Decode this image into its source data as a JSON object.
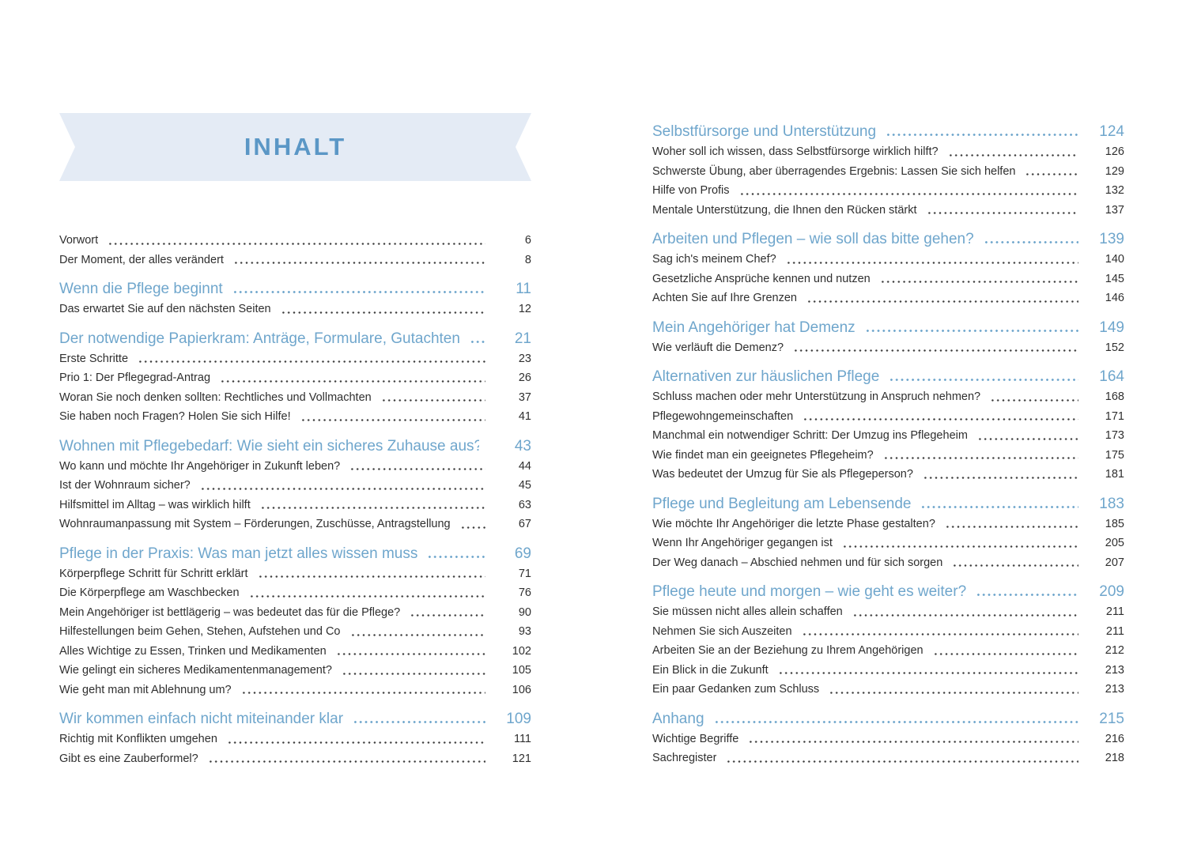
{
  "page": {
    "title": "INHALT"
  },
  "colors": {
    "banner_bg": "#E4EBF5",
    "title_blue": "#5B97C6",
    "heading_blue": "#6FA6CC",
    "body_text": "#2F2F2F"
  },
  "columns": [
    {
      "side": "left",
      "sections": [
        {
          "heading": null,
          "items": [
            {
              "label": "Vorwort",
              "page": "6"
            },
            {
              "label": "Der Moment, der alles verändert",
              "page": "8"
            }
          ]
        },
        {
          "heading": {
            "label": "Wenn die Pflege beginnt",
            "page": "11"
          },
          "items": [
            {
              "label": "Das erwartet Sie auf den nächsten Seiten",
              "page": "12"
            }
          ]
        },
        {
          "heading": {
            "label": "Der notwendige Papierkram: Anträge, Formulare, Gutachten",
            "page": "21"
          },
          "items": [
            {
              "label": "Erste Schritte",
              "page": "23"
            },
            {
              "label": "Prio 1: Der Pflegegrad-Antrag",
              "page": "26"
            },
            {
              "label": "Woran Sie noch denken sollten: Rechtliches und Vollmachten",
              "page": "37"
            },
            {
              "label": "Sie haben noch Fragen? Holen Sie sich Hilfe!",
              "page": "41"
            }
          ]
        },
        {
          "heading": {
            "label": "Wohnen mit Pflegebedarf: Wie sieht ein sicheres Zuhause aus?",
            "page": "43"
          },
          "items": [
            {
              "label": "Wo kann und möchte Ihr Angehöriger in Zukunft leben?",
              "page": "44"
            },
            {
              "label": "Ist der Wohnraum sicher?",
              "page": "45"
            },
            {
              "label": "Hilfsmittel im Alltag – was wirklich hilft",
              "page": "63"
            },
            {
              "label": "Wohnraumanpassung mit System – Förderungen, Zuschüsse, Antragstellung",
              "page": "67"
            }
          ]
        },
        {
          "heading": {
            "label": "Pflege in der Praxis: Was man jetzt alles wissen muss",
            "page": "69"
          },
          "items": [
            {
              "label": "Körperpflege Schritt für Schritt erklärt",
              "page": "71"
            },
            {
              "label": "Die Körperpflege am Waschbecken",
              "page": "76"
            },
            {
              "label": "Mein Angehöriger ist bettlägerig – was bedeutet das für die Pflege?",
              "page": "90"
            },
            {
              "label": "Hilfestellungen beim Gehen, Stehen, Aufstehen und Co",
              "page": "93"
            },
            {
              "label": "Alles Wichtige zu Essen, Trinken und Medikamenten",
              "page": "102"
            },
            {
              "label": "Wie gelingt ein sicheres Medikamentenmanagement?",
              "page": "105"
            },
            {
              "label": "Wie geht man mit Ablehnung um?",
              "page": "106"
            }
          ]
        },
        {
          "heading": {
            "label": "Wir kommen einfach nicht miteinander klar",
            "page": "109"
          },
          "items": [
            {
              "label": "Richtig mit Konflikten umgehen",
              "page": "111"
            },
            {
              "label": "Gibt es eine Zauberformel?",
              "page": "121"
            }
          ]
        }
      ]
    },
    {
      "side": "right",
      "sections": [
        {
          "heading": {
            "label": "Selbstfürsorge und Unterstützung",
            "page": "124"
          },
          "items": [
            {
              "label": "Woher soll ich wissen, dass Selbstfürsorge wirklich hilft?",
              "page": "126"
            },
            {
              "label": "Schwerste Übung, aber überragendes Ergebnis: Lassen Sie sich helfen",
              "page": "129"
            },
            {
              "label": "Hilfe von Profis",
              "page": "132"
            },
            {
              "label": "Mentale Unterstützung, die Ihnen den Rücken stärkt",
              "page": "137"
            }
          ]
        },
        {
          "heading": {
            "label": "Arbeiten und Pflegen – wie soll das bitte gehen?",
            "page": "139"
          },
          "items": [
            {
              "label": "Sag ich's meinem Chef?",
              "page": "140"
            },
            {
              "label": "Gesetzliche Ansprüche kennen und nutzen",
              "page": "145"
            },
            {
              "label": "Achten Sie auf Ihre Grenzen",
              "page": "146"
            }
          ]
        },
        {
          "heading": {
            "label": "Mein Angehöriger hat Demenz",
            "page": "149"
          },
          "items": [
            {
              "label": "Wie verläuft die Demenz?",
              "page": "152"
            }
          ]
        },
        {
          "heading": {
            "label": "Alternativen zur häuslichen Pflege",
            "page": "164"
          },
          "items": [
            {
              "label": "Schluss machen oder mehr Unterstützung in Anspruch nehmen?",
              "page": "168"
            },
            {
              "label": "Pflegewohngemeinschaften",
              "page": "171"
            },
            {
              "label": "Manchmal ein notwendiger Schritt: Der Umzug ins Pflegeheim",
              "page": "173"
            },
            {
              "label": "Wie findet man ein geeignetes Pflegeheim?",
              "page": "175"
            },
            {
              "label": "Was bedeutet der Umzug für Sie als Pflegeperson?",
              "page": "181"
            }
          ]
        },
        {
          "heading": {
            "label": "Pflege und Begleitung am Lebensende",
            "page": "183"
          },
          "items": [
            {
              "label": "Wie möchte Ihr Angehöriger die letzte Phase gestalten?",
              "page": "185"
            },
            {
              "label": "Wenn Ihr Angehöriger gegangen ist",
              "page": "205"
            },
            {
              "label": "Der Weg danach – Abschied nehmen und für sich sorgen",
              "page": "207"
            }
          ]
        },
        {
          "heading": {
            "label": "Pflege heute und morgen – wie geht es weiter?",
            "page": "209"
          },
          "items": [
            {
              "label": "Sie müssen nicht alles allein schaffen",
              "page": "211"
            },
            {
              "label": "Nehmen Sie sich Auszeiten",
              "page": "211"
            },
            {
              "label": "Arbeiten Sie an der Beziehung zu Ihrem Angehörigen",
              "page": "212"
            },
            {
              "label": "Ein Blick in die Zukunft",
              "page": "213"
            },
            {
              "label": "Ein paar Gedanken zum Schluss",
              "page": "213"
            }
          ]
        },
        {
          "heading": {
            "label": "Anhang",
            "page": "215"
          },
          "items": [
            {
              "label": "Wichtige Begriffe",
              "page": "216"
            },
            {
              "label": "Sachregister",
              "page": "218"
            }
          ]
        }
      ]
    }
  ]
}
